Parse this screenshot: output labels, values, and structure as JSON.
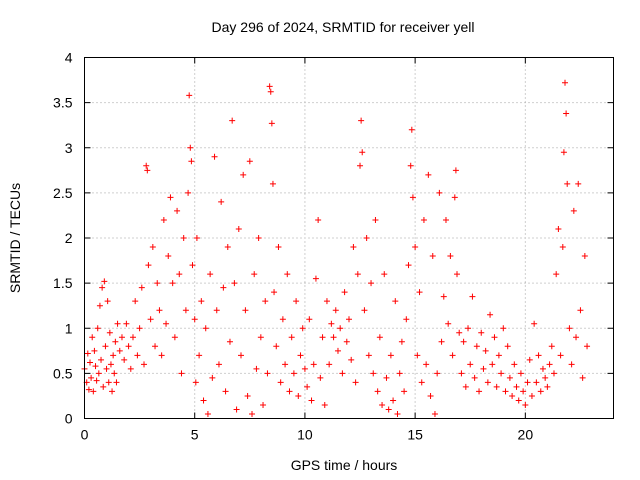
{
  "chart_data": {
    "type": "scatter",
    "title": "Day 296 of 2024, SRMTID for receiver yell",
    "xlabel": "GPS time / hours",
    "ylabel": "SRMTID / TECUs",
    "xlim": [
      0,
      24
    ],
    "ylim": [
      0,
      4
    ],
    "xticks": [
      "0",
      "5",
      "10",
      "15",
      "20"
    ],
    "yticks": [
      "0",
      "0.5",
      "1",
      "1.5",
      "2",
      "2.5",
      "3",
      "3.5",
      "4"
    ],
    "grid": true,
    "marker": "+",
    "color": "#ff0000",
    "series": [
      {
        "name": "SRMTID",
        "points": [
          [
            0.0,
            0.55
          ],
          [
            0.1,
            0.4
          ],
          [
            0.15,
            0.72
          ],
          [
            0.2,
            0.32
          ],
          [
            0.25,
            0.62
          ],
          [
            0.3,
            0.45
          ],
          [
            0.35,
            0.9
          ],
          [
            0.4,
            0.3
          ],
          [
            0.45,
            0.75
          ],
          [
            0.5,
            0.58
          ],
          [
            0.55,
            0.42
          ],
          [
            0.6,
            1.0
          ],
          [
            0.65,
            0.5
          ],
          [
            0.7,
            1.25
          ],
          [
            0.75,
            0.65
          ],
          [
            0.8,
            1.45
          ],
          [
            0.85,
            0.35
          ],
          [
            0.9,
            1.52
          ],
          [
            0.95,
            0.8
          ],
          [
            1.0,
            0.55
          ],
          [
            1.05,
            1.3
          ],
          [
            1.1,
            0.4
          ],
          [
            1.15,
            0.95
          ],
          [
            1.2,
            0.6
          ],
          [
            1.25,
            0.3
          ],
          [
            1.3,
            0.7
          ],
          [
            1.35,
            0.5
          ],
          [
            1.4,
            0.85
          ],
          [
            1.45,
            0.4
          ],
          [
            1.5,
            1.05
          ],
          [
            1.6,
            0.75
          ],
          [
            1.7,
            0.9
          ],
          [
            1.8,
            0.65
          ],
          [
            1.9,
            1.05
          ],
          [
            2.0,
            0.8
          ],
          [
            2.1,
            0.55
          ],
          [
            2.2,
            0.9
          ],
          [
            2.3,
            1.3
          ],
          [
            2.4,
            0.7
          ],
          [
            2.5,
            1.0
          ],
          [
            2.6,
            1.45
          ],
          [
            2.7,
            0.6
          ],
          [
            2.8,
            2.8
          ],
          [
            2.85,
            2.75
          ],
          [
            2.9,
            1.7
          ],
          [
            3.0,
            1.1
          ],
          [
            3.1,
            1.9
          ],
          [
            3.2,
            0.8
          ],
          [
            3.3,
            1.5
          ],
          [
            3.4,
            1.2
          ],
          [
            3.5,
            0.7
          ],
          [
            3.6,
            2.2
          ],
          [
            3.7,
            1.05
          ],
          [
            3.8,
            1.8
          ],
          [
            3.9,
            2.45
          ],
          [
            4.0,
            1.5
          ],
          [
            4.1,
            0.9
          ],
          [
            4.2,
            2.3
          ],
          [
            4.3,
            1.6
          ],
          [
            4.4,
            0.5
          ],
          [
            4.5,
            2.0
          ],
          [
            4.6,
            1.2
          ],
          [
            4.7,
            2.5
          ],
          [
            4.75,
            3.58
          ],
          [
            4.8,
            3.0
          ],
          [
            4.85,
            2.85
          ],
          [
            4.9,
            1.7
          ],
          [
            5.0,
            1.1
          ],
          [
            5.05,
            0.4
          ],
          [
            5.1,
            2.0
          ],
          [
            5.2,
            0.7
          ],
          [
            5.3,
            1.3
          ],
          [
            5.4,
            0.2
          ],
          [
            5.5,
            1.0
          ],
          [
            5.6,
            0.05
          ],
          [
            5.7,
            1.6
          ],
          [
            5.8,
            0.45
          ],
          [
            5.9,
            2.9
          ],
          [
            6.0,
            1.2
          ],
          [
            6.1,
            0.6
          ],
          [
            6.2,
            2.4
          ],
          [
            6.3,
            1.45
          ],
          [
            6.4,
            0.3
          ],
          [
            6.5,
            1.9
          ],
          [
            6.6,
            0.85
          ],
          [
            6.7,
            3.3
          ],
          [
            6.8,
            1.5
          ],
          [
            6.9,
            0.1
          ],
          [
            7.0,
            2.1
          ],
          [
            7.1,
            0.7
          ],
          [
            7.2,
            2.7
          ],
          [
            7.3,
            1.2
          ],
          [
            7.4,
            0.25
          ],
          [
            7.5,
            2.85
          ],
          [
            7.6,
            0.05
          ],
          [
            7.7,
            1.6
          ],
          [
            7.8,
            0.55
          ],
          [
            7.9,
            2.0
          ],
          [
            8.0,
            0.9
          ],
          [
            8.1,
            0.15
          ],
          [
            8.2,
            1.3
          ],
          [
            8.3,
            0.5
          ],
          [
            8.4,
            3.68
          ],
          [
            8.45,
            3.62
          ],
          [
            8.5,
            3.27
          ],
          [
            8.55,
            2.6
          ],
          [
            8.6,
            1.4
          ],
          [
            8.7,
            0.8
          ],
          [
            8.8,
            1.9
          ],
          [
            8.9,
            0.4
          ],
          [
            9.0,
            1.1
          ],
          [
            9.1,
            0.6
          ],
          [
            9.2,
            1.6
          ],
          [
            9.3,
            0.3
          ],
          [
            9.4,
            0.9
          ],
          [
            9.5,
            0.5
          ],
          [
            9.6,
            1.3
          ],
          [
            9.7,
            0.25
          ],
          [
            9.8,
            0.7
          ],
          [
            9.9,
            1.0
          ],
          [
            10.0,
            0.55
          ],
          [
            10.1,
            0.35
          ],
          [
            10.2,
            1.1
          ],
          [
            10.3,
            0.2
          ],
          [
            10.4,
            0.6
          ],
          [
            10.5,
            1.55
          ],
          [
            10.6,
            2.2
          ],
          [
            10.7,
            0.45
          ],
          [
            10.8,
            0.9
          ],
          [
            10.9,
            0.15
          ],
          [
            11.0,
            1.3
          ],
          [
            11.1,
            0.6
          ],
          [
            11.2,
            1.05
          ],
          [
            11.3,
            0.9
          ],
          [
            11.4,
            1.2
          ],
          [
            11.5,
            0.75
          ],
          [
            11.6,
            1.0
          ],
          [
            11.7,
            0.5
          ],
          [
            11.8,
            1.4
          ],
          [
            11.9,
            0.85
          ],
          [
            12.0,
            1.1
          ],
          [
            12.1,
            0.65
          ],
          [
            12.2,
            1.9
          ],
          [
            12.3,
            0.4
          ],
          [
            12.4,
            1.6
          ],
          [
            12.5,
            2.8
          ],
          [
            12.55,
            3.3
          ],
          [
            12.6,
            2.95
          ],
          [
            12.7,
            1.2
          ],
          [
            12.8,
            2.0
          ],
          [
            12.9,
            0.7
          ],
          [
            13.0,
            1.5
          ],
          [
            13.1,
            0.5
          ],
          [
            13.2,
            2.2
          ],
          [
            13.3,
            0.3
          ],
          [
            13.4,
            0.9
          ],
          [
            13.5,
            0.15
          ],
          [
            13.6,
            1.6
          ],
          [
            13.7,
            0.45
          ],
          [
            13.8,
            0.1
          ],
          [
            13.9,
            0.7
          ],
          [
            14.0,
            0.2
          ],
          [
            14.1,
            1.3
          ],
          [
            14.2,
            0.05
          ],
          [
            14.3,
            0.5
          ],
          [
            14.4,
            0.85
          ],
          [
            14.5,
            0.3
          ],
          [
            14.6,
            1.1
          ],
          [
            14.7,
            1.7
          ],
          [
            14.8,
            2.8
          ],
          [
            14.85,
            3.2
          ],
          [
            14.9,
            2.45
          ],
          [
            15.0,
            1.9
          ],
          [
            15.1,
            0.7
          ],
          [
            15.2,
            1.4
          ],
          [
            15.3,
            0.4
          ],
          [
            15.4,
            2.2
          ],
          [
            15.5,
            0.6
          ],
          [
            15.6,
            2.7
          ],
          [
            15.7,
            0.25
          ],
          [
            15.8,
            1.8
          ],
          [
            15.9,
            0.05
          ],
          [
            16.0,
            0.5
          ],
          [
            16.1,
            2.5
          ],
          [
            16.2,
            0.85
          ],
          [
            16.3,
            1.35
          ],
          [
            16.4,
            2.2
          ],
          [
            16.5,
            1.05
          ],
          [
            16.6,
            1.8
          ],
          [
            16.7,
            0.7
          ],
          [
            16.8,
            2.45
          ],
          [
            16.85,
            2.75
          ],
          [
            16.9,
            1.6
          ],
          [
            17.0,
            0.95
          ],
          [
            17.1,
            0.5
          ],
          [
            17.2,
            0.85
          ],
          [
            17.3,
            0.35
          ],
          [
            17.4,
            1.0
          ],
          [
            17.5,
            0.6
          ],
          [
            17.6,
            1.35
          ],
          [
            17.7,
            0.45
          ],
          [
            17.8,
            0.8
          ],
          [
            17.9,
            0.3
          ],
          [
            18.0,
            0.95
          ],
          [
            18.1,
            0.55
          ],
          [
            18.2,
            0.75
          ],
          [
            18.3,
            0.4
          ],
          [
            18.4,
            1.15
          ],
          [
            18.5,
            0.6
          ],
          [
            18.6,
            0.9
          ],
          [
            18.7,
            0.35
          ],
          [
            18.8,
            0.7
          ],
          [
            18.9,
            0.5
          ],
          [
            19.0,
            1.0
          ],
          [
            19.1,
            0.3
          ],
          [
            19.2,
            0.8
          ],
          [
            19.3,
            0.45
          ],
          [
            19.4,
            0.25
          ],
          [
            19.5,
            0.6
          ],
          [
            19.6,
            0.35
          ],
          [
            19.7,
            0.2
          ],
          [
            19.8,
            0.5
          ],
          [
            19.9,
            0.3
          ],
          [
            20.0,
            0.15
          ],
          [
            20.1,
            0.4
          ],
          [
            20.2,
            0.65
          ],
          [
            20.3,
            0.25
          ],
          [
            20.4,
            1.05
          ],
          [
            20.5,
            0.4
          ],
          [
            20.6,
            0.7
          ],
          [
            20.7,
            0.3
          ],
          [
            20.8,
            0.55
          ],
          [
            20.9,
            0.45
          ],
          [
            21.0,
            0.35
          ],
          [
            21.1,
            0.6
          ],
          [
            21.2,
            0.8
          ],
          [
            21.3,
            0.5
          ],
          [
            21.4,
            1.6
          ],
          [
            21.5,
            2.1
          ],
          [
            21.6,
            0.7
          ],
          [
            21.7,
            1.9
          ],
          [
            21.75,
            2.95
          ],
          [
            21.8,
            3.72
          ],
          [
            21.85,
            3.38
          ],
          [
            21.9,
            2.6
          ],
          [
            22.0,
            1.0
          ],
          [
            22.1,
            0.6
          ],
          [
            22.2,
            2.3
          ],
          [
            22.3,
            0.9
          ],
          [
            22.4,
            2.6
          ],
          [
            22.5,
            1.2
          ],
          [
            22.6,
            0.45
          ],
          [
            22.7,
            1.8
          ],
          [
            22.8,
            0.8
          ]
        ]
      }
    ]
  }
}
